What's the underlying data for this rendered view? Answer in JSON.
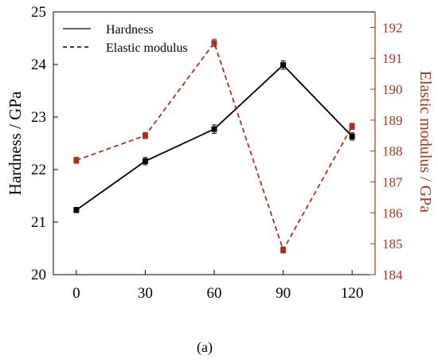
{
  "chart_data": {
    "type": "line",
    "caption": "(a)",
    "x": [
      0,
      30,
      60,
      90,
      120
    ],
    "xlim": [
      -10,
      130
    ],
    "x_ticks": [
      "0",
      "30",
      "60",
      "90",
      "120"
    ],
    "y_left": {
      "label": "Hardness / GPa",
      "lim": [
        20,
        25
      ],
      "ticks": [
        "20",
        "21",
        "22",
        "23",
        "24",
        "25"
      ],
      "color": "#000000"
    },
    "y_right": {
      "label": "Elastic modulus / GPa",
      "lim": [
        184,
        192.5
      ],
      "ticks": [
        "184",
        "185",
        "186",
        "187",
        "188",
        "189",
        "190",
        "191",
        "192"
      ],
      "color": "#a8321e"
    },
    "series": [
      {
        "name": "Hardness",
        "axis": "left",
        "line_style": "solid",
        "color": "#000000",
        "values": [
          21.23,
          22.16,
          22.77,
          23.99,
          22.63
        ],
        "errors": [
          0.05,
          0.07,
          0.08,
          0.08,
          0.07
        ]
      },
      {
        "name": "Elastic modulus",
        "axis": "right",
        "line_style": "dashed",
        "color": "#a8321e",
        "values": [
          187.7,
          188.5,
          191.5,
          184.8,
          188.8
        ],
        "errors": [
          0.1,
          0.1,
          0.12,
          0.1,
          0.1
        ]
      }
    ],
    "legend_position": "top-left",
    "grid": false
  }
}
